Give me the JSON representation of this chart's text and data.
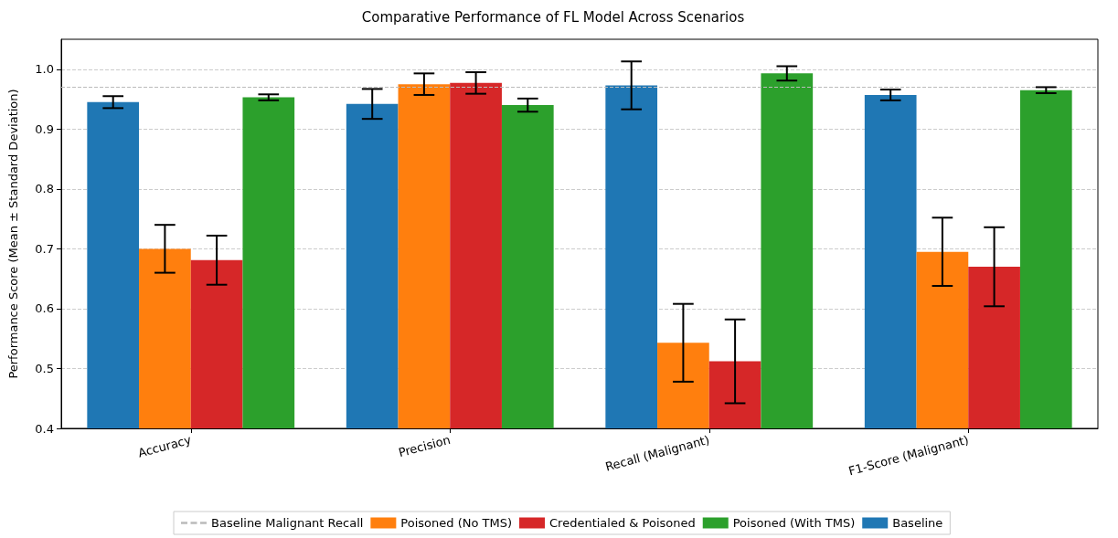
{
  "chart_data": {
    "type": "bar",
    "title": "Comparative Performance of FL Model Across Scenarios",
    "ylabel": "Performance Score (Mean ± Standard Deviation)",
    "categories": [
      "Accuracy",
      "Precision",
      "Recall (Malignant)",
      "F1-Score (Malignant)"
    ],
    "series": [
      {
        "name": "Baseline",
        "color": "#1f77b4",
        "values": [
          0.945,
          0.942,
          0.973,
          0.957
        ],
        "errors": [
          0.01,
          0.025,
          0.04,
          0.009
        ]
      },
      {
        "name": "Poisoned (No TMS)",
        "color": "#ff7f0e",
        "values": [
          0.7,
          0.975,
          0.543,
          0.695
        ],
        "errors": [
          0.04,
          0.018,
          0.065,
          0.057
        ]
      },
      {
        "name": "Credentialed & Poisoned",
        "color": "#d62728",
        "values": [
          0.681,
          0.977,
          0.512,
          0.67
        ],
        "errors": [
          0.041,
          0.018,
          0.07,
          0.066
        ]
      },
      {
        "name": "Poisoned (With TMS)",
        "color": "#2ca02c",
        "values": [
          0.953,
          0.94,
          0.993,
          0.965
        ],
        "errors": [
          0.005,
          0.011,
          0.012,
          0.005
        ]
      }
    ],
    "ref_lines": [
      {
        "axis": "y",
        "value": 0.973,
        "label": "Baseline Malignant Recall",
        "color": "#bbbbbb",
        "line_style": "dashed"
      }
    ],
    "ylim": [
      0.4,
      1.05
    ],
    "yticks": [
      0.4,
      0.5,
      0.6,
      0.7,
      0.8,
      0.9,
      {
        "value": 1,
        "label": "1.0"
      }
    ],
    "grid": "y",
    "legend": "bottom"
  }
}
